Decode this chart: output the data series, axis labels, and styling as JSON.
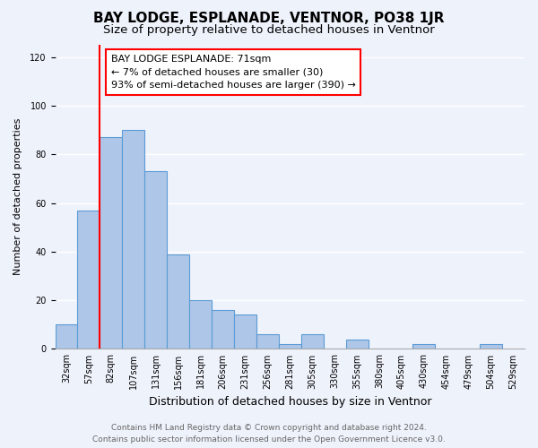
{
  "title": "BAY LODGE, ESPLANADE, VENTNOR, PO38 1JR",
  "subtitle": "Size of property relative to detached houses in Ventnor",
  "xlabel": "Distribution of detached houses by size in Ventnor",
  "ylabel": "Number of detached properties",
  "bar_values": [
    10,
    57,
    87,
    90,
    73,
    39,
    20,
    16,
    14,
    6,
    2,
    6,
    0,
    4,
    0,
    0,
    2,
    0,
    0,
    2
  ],
  "bar_labels": [
    "32sqm",
    "57sqm",
    "82sqm",
    "107sqm",
    "131sqm",
    "156sqm",
    "181sqm",
    "206sqm",
    "231sqm",
    "256sqm",
    "281sqm",
    "305sqm",
    "330sqm",
    "355sqm",
    "380sqm",
    "405sqm",
    "430sqm",
    "454sqm",
    "479sqm",
    "504sqm"
  ],
  "extra_label": "529sqm",
  "bar_color": "#aec6e8",
  "bar_edge_color": "#5b9bd5",
  "vline_x": 1.5,
  "vline_color": "red",
  "annotation_line1": "BAY LODGE ESPLANADE: 71sqm",
  "annotation_line2": "← 7% of detached houses are smaller (30)",
  "annotation_line3": "93% of semi-detached houses are larger (390) →",
  "ylim": [
    0,
    125
  ],
  "yticks": [
    0,
    20,
    40,
    60,
    80,
    100,
    120
  ],
  "footer_line1": "Contains HM Land Registry data © Crown copyright and database right 2024.",
  "footer_line2": "Contains public sector information licensed under the Open Government Licence v3.0.",
  "background_color": "#eef2fb",
  "plot_bg_color": "#eef2fb",
  "grid_color": "#ffffff",
  "title_fontsize": 11,
  "subtitle_fontsize": 9.5,
  "xlabel_fontsize": 9,
  "ylabel_fontsize": 8,
  "tick_fontsize": 7,
  "footer_fontsize": 6.5,
  "annotation_fontsize": 8
}
